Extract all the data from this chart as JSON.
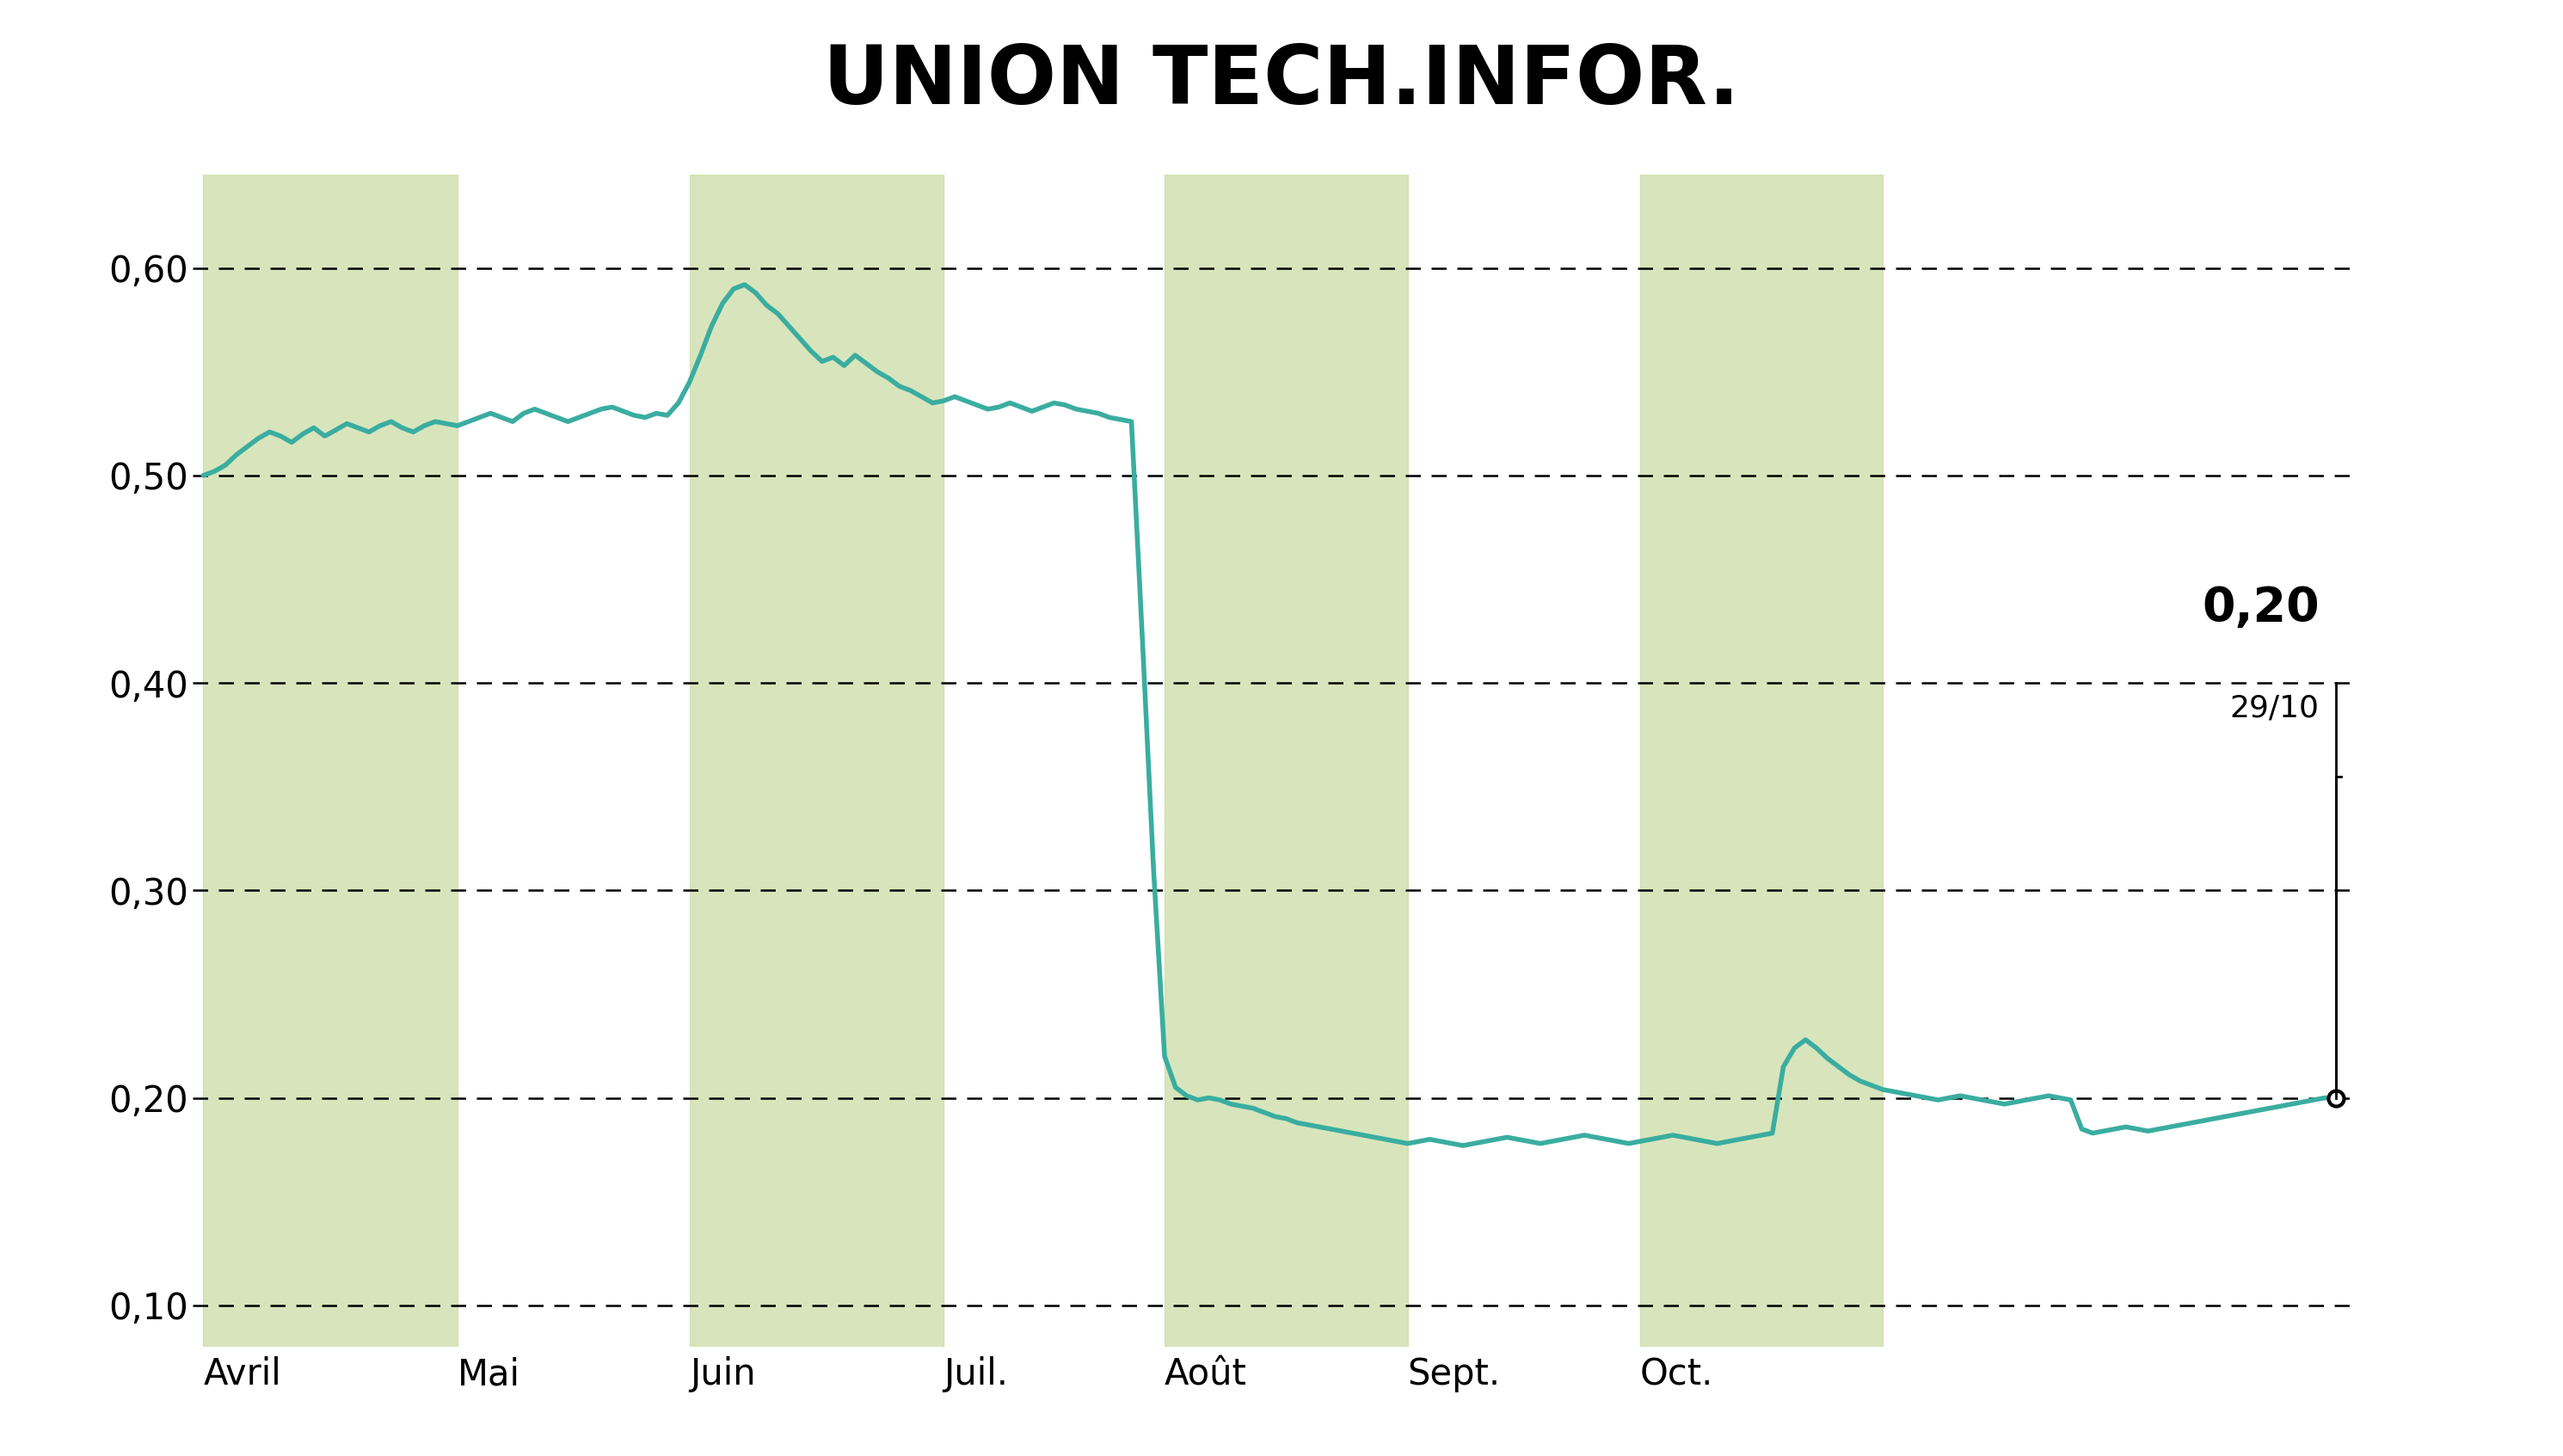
{
  "title": "UNION TECH.INFOR.",
  "title_bg_color": "#c8dba0",
  "title_fontsize": 68,
  "chart_bg_color": "#ffffff",
  "line_color": "#3aada0",
  "line_width": 4.0,
  "ylim": [
    0.08,
    0.645
  ],
  "yticks": [
    0.1,
    0.2,
    0.3,
    0.4,
    0.5,
    0.6
  ],
  "ytick_labels": [
    "0,10",
    "0,20",
    "0,30",
    "0,40",
    "0,50",
    "0,60"
  ],
  "months": [
    "Avril",
    "Mai",
    "Juin",
    "Juil.",
    "Août",
    "Sept.",
    "Oct."
  ],
  "shade_color": "#c8dba0",
  "shade_alpha": 0.7,
  "annotation_price": "0,20",
  "annotation_date": "29/10",
  "annotation_fontsize_price": 40,
  "annotation_fontsize_date": 26,
  "last_price": 0.2,
  "month_boundaries": [
    0,
    23,
    44,
    67,
    87,
    109,
    130,
    152
  ],
  "shaded_months": [
    0,
    2,
    4,
    6
  ],
  "prices": [
    0.5,
    0.502,
    0.505,
    0.51,
    0.514,
    0.518,
    0.521,
    0.519,
    0.516,
    0.52,
    0.523,
    0.519,
    0.522,
    0.525,
    0.523,
    0.521,
    0.524,
    0.526,
    0.523,
    0.521,
    0.524,
    0.526,
    0.525,
    0.524,
    0.526,
    0.528,
    0.53,
    0.528,
    0.526,
    0.53,
    0.532,
    0.53,
    0.528,
    0.526,
    0.528,
    0.53,
    0.532,
    0.533,
    0.531,
    0.529,
    0.528,
    0.53,
    0.529,
    0.535,
    0.545,
    0.558,
    0.572,
    0.583,
    0.59,
    0.592,
    0.588,
    0.582,
    0.578,
    0.572,
    0.566,
    0.56,
    0.555,
    0.557,
    0.553,
    0.558,
    0.554,
    0.55,
    0.547,
    0.543,
    0.541,
    0.538,
    0.535,
    0.536,
    0.538,
    0.536,
    0.534,
    0.532,
    0.533,
    0.535,
    0.533,
    0.531,
    0.533,
    0.535,
    0.534,
    0.532,
    0.531,
    0.53,
    0.528,
    0.527,
    0.526,
    0.42,
    0.31,
    0.22,
    0.205,
    0.201,
    0.199,
    0.2,
    0.199,
    0.197,
    0.196,
    0.195,
    0.193,
    0.191,
    0.19,
    0.188,
    0.187,
    0.186,
    0.185,
    0.184,
    0.183,
    0.182,
    0.181,
    0.18,
    0.179,
    0.178,
    0.179,
    0.18,
    0.179,
    0.178,
    0.177,
    0.178,
    0.179,
    0.18,
    0.181,
    0.18,
    0.179,
    0.178,
    0.179,
    0.18,
    0.181,
    0.182,
    0.181,
    0.18,
    0.179,
    0.178,
    0.179,
    0.18,
    0.181,
    0.182,
    0.181,
    0.18,
    0.179,
    0.178,
    0.179,
    0.18,
    0.181,
    0.182,
    0.183,
    0.215,
    0.224,
    0.228,
    0.224,
    0.219,
    0.215,
    0.211,
    0.208,
    0.206,
    0.204,
    0.203,
    0.202,
    0.201,
    0.2,
    0.199,
    0.2,
    0.201,
    0.2,
    0.199,
    0.198,
    0.197,
    0.198,
    0.199,
    0.2,
    0.201,
    0.2,
    0.199,
    0.185,
    0.183,
    0.184,
    0.185,
    0.186,
    0.185,
    0.184,
    0.185,
    0.186,
    0.187,
    0.188,
    0.189,
    0.19,
    0.191,
    0.192,
    0.193,
    0.194,
    0.195,
    0.196,
    0.197,
    0.198,
    0.199,
    0.2,
    0.2
  ]
}
